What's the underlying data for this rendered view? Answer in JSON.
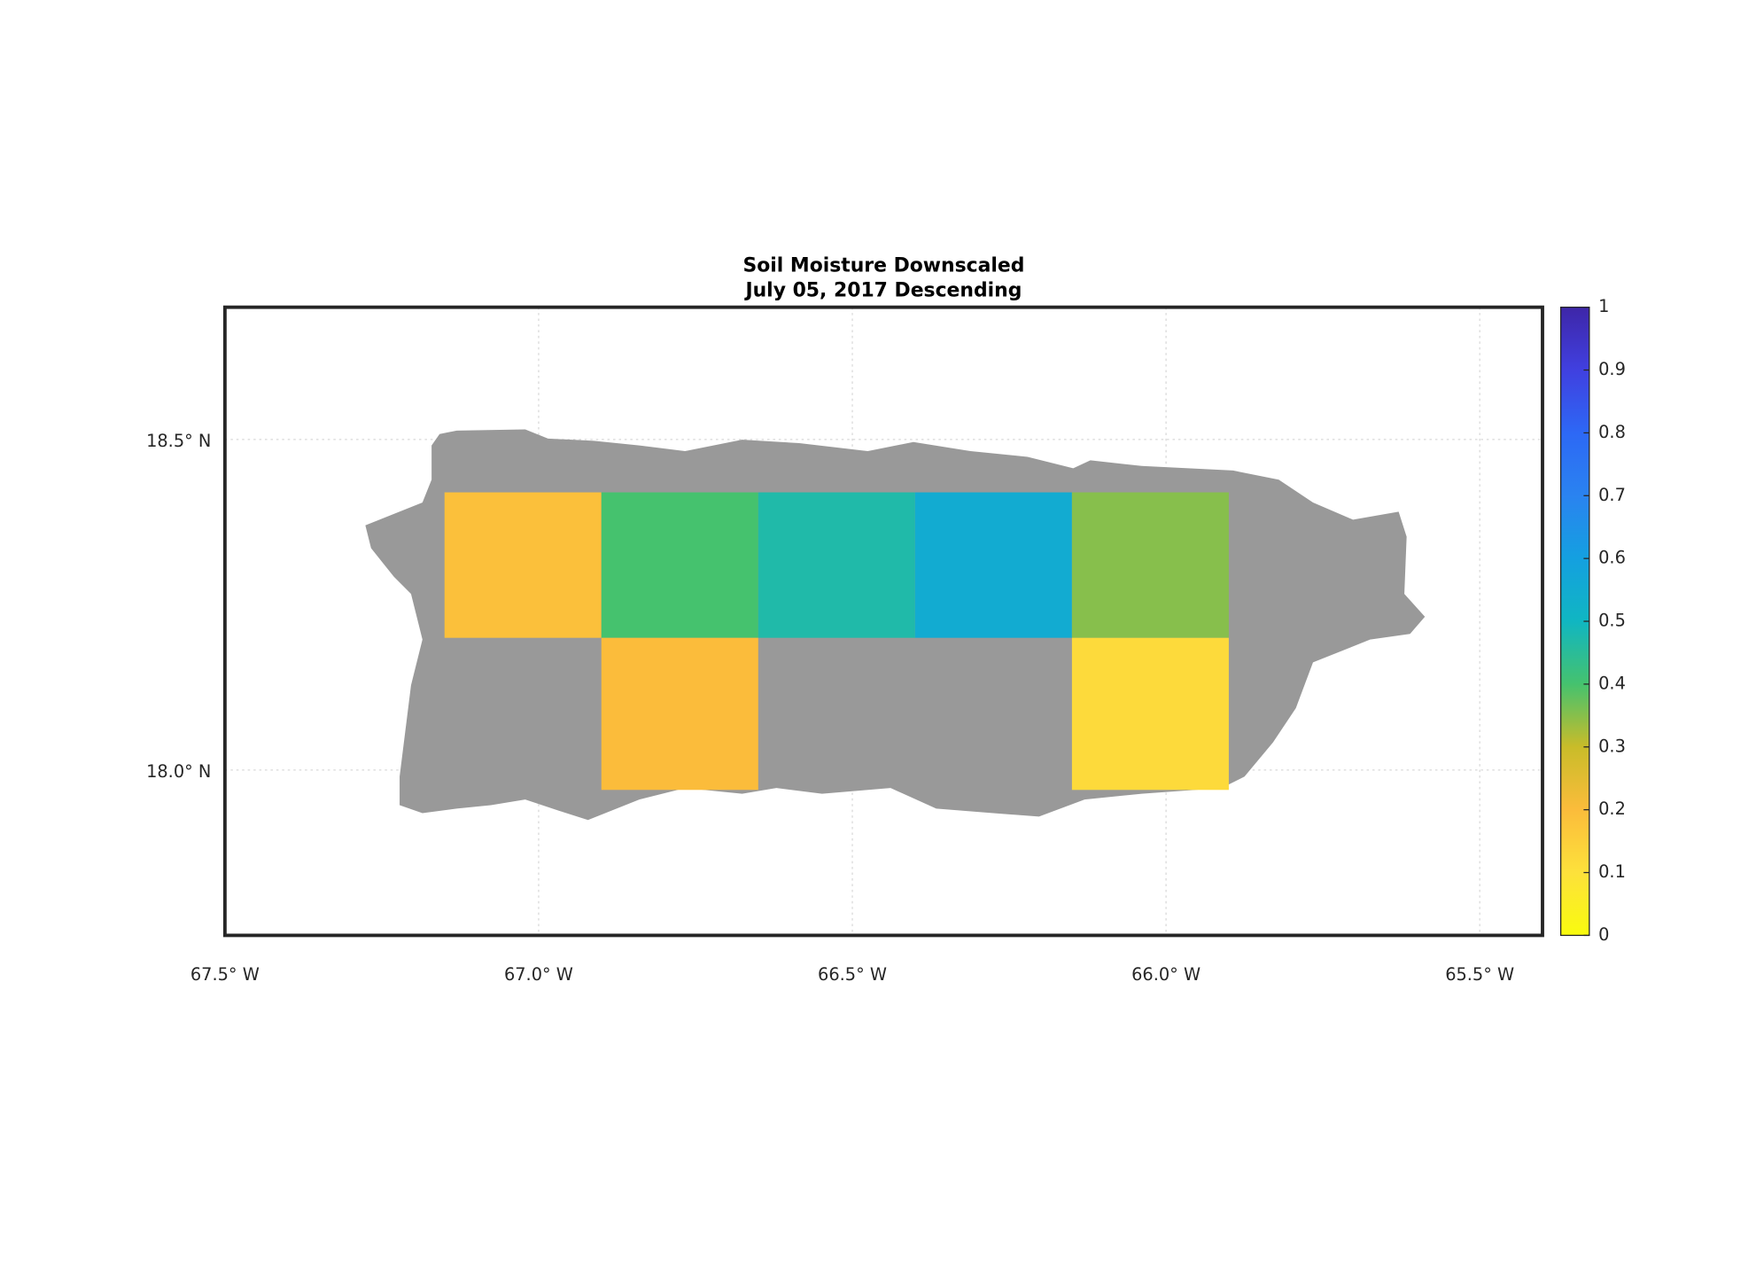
{
  "chart_data": {
    "type": "map",
    "title": "Soil Moisture Downscaled",
    "subtitle": "July 05, 2017 Descending",
    "xlim": [
      -67.5,
      -65.4
    ],
    "ylim": [
      17.75,
      18.7
    ],
    "xticks": [
      {
        "value": -67.5,
        "label": "67.5° W"
      },
      {
        "value": -67.0,
        "label": "67.0° W"
      },
      {
        "value": -66.5,
        "label": "66.5° W"
      },
      {
        "value": -66.0,
        "label": "66.0° W"
      },
      {
        "value": -65.5,
        "label": "65.5° W"
      }
    ],
    "yticks": [
      {
        "value": 18.0,
        "label": "18.0° N"
      },
      {
        "value": 18.5,
        "label": "18.5° N"
      }
    ],
    "grid": true,
    "clim": [
      0,
      1
    ],
    "cticks": [
      0,
      0.1,
      0.2,
      0.3,
      0.4,
      0.5,
      0.6,
      0.7,
      0.8,
      0.9,
      1
    ],
    "colormap": [
      "#f9fb0e",
      "#fde13b",
      "#fbbc3b",
      "#c9bc29",
      "#45c26e",
      "#10b6c2",
      "#14a0e0",
      "#2a83f0",
      "#2d68f5",
      "#4040e0",
      "#3e26a8"
    ],
    "land_color": "#999999",
    "tiles": {
      "lon_min": [
        -67.15,
        -66.9,
        -66.65,
        -66.4,
        -66.15,
        -66.9,
        -66.15
      ],
      "lon_max": [
        -66.9,
        -66.65,
        -66.4,
        -66.15,
        -65.9,
        -66.65,
        -65.9
      ],
      "lat_min": [
        18.2,
        18.2,
        18.2,
        18.2,
        18.2,
        17.97,
        17.97
      ],
      "lat_max": [
        18.42,
        18.42,
        18.42,
        18.42,
        18.42,
        18.2,
        18.2
      ],
      "values": [
        0.19,
        0.4,
        0.47,
        0.55,
        0.35,
        0.2,
        0.12
      ]
    }
  }
}
